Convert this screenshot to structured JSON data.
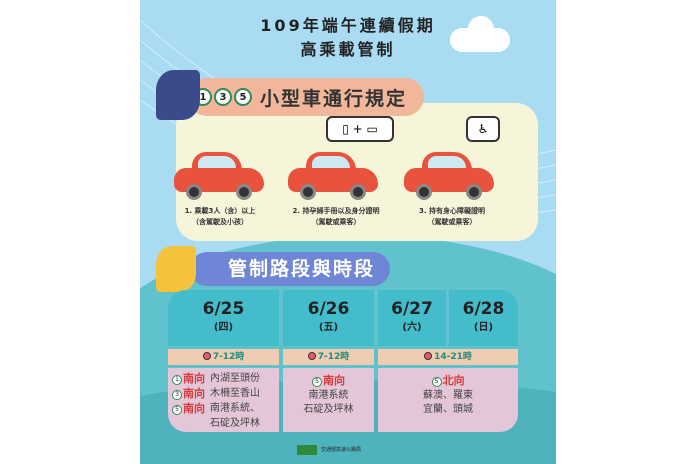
{
  "title": {
    "line1": "109年端午連續假期",
    "line2": "高乘載管制"
  },
  "section1": {
    "days": [
      "1",
      "3",
      "5"
    ],
    "title": "小型車通行規定",
    "rules": [
      {
        "line1": "1. 乘載3人（含）以上",
        "line2": "（含駕駛及小孩）"
      },
      {
        "line1": "2. 持孕婦手冊以及身分證明",
        "line2": "（駕駛或乘客）"
      },
      {
        "line1": "3. 持有身心障礙證明",
        "line2": "（駕駛或乘客）"
      }
    ]
  },
  "section2": {
    "title": "管制路段與時段",
    "dates": [
      {
        "date": "6/25",
        "weekday": "(四)"
      },
      {
        "date": "6/26",
        "weekday": "(五)"
      },
      {
        "date": "6/27",
        "weekday": "(六)"
      },
      {
        "date": "6/28",
        "weekday": "(日)"
      }
    ],
    "times": [
      "7-12時",
      "7-12時",
      "14-21時"
    ],
    "col1": [
      {
        "num": "1",
        "dir": "南向",
        "route": "內湖至頭份"
      },
      {
        "num": "3",
        "dir": "南向",
        "route": "木柵至香山"
      },
      {
        "num": "5",
        "dir": "南向",
        "route": "南港系統、",
        "route2": "石碇及坪林"
      }
    ],
    "col2": {
      "num": "5",
      "dir": "南向",
      "route1": "南港系統",
      "route2": "石碇及坪林"
    },
    "col3": {
      "num": "5",
      "dir": "北向",
      "route1": "蘇澳、羅東",
      "route2": "宜蘭、頭城"
    }
  },
  "footer": {
    "org": "交通部高速公路局"
  },
  "colors": {
    "sky": "#a9dcf3",
    "teal": "#43bccc",
    "peach": "#efcdb3",
    "pink": "#e3c6d8",
    "red": "#d83a3a",
    "car": "#e9523c"
  }
}
